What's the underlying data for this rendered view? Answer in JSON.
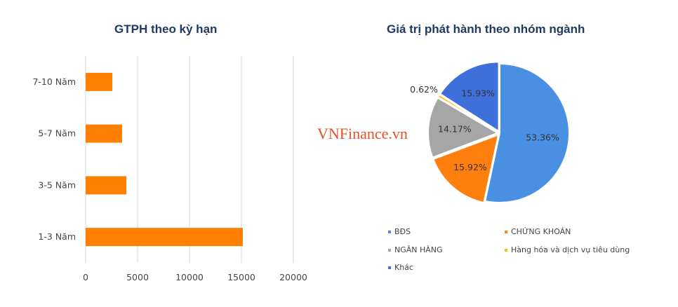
{
  "watermark": "VNFinance.vn",
  "chart_data": [
    {
      "type": "bar",
      "orientation": "horizontal",
      "title": "GTPH theo kỳ hạn",
      "categories": [
        "7-10 Năm",
        "5-7 Năm",
        "3-5 Năm",
        "1-3 Năm"
      ],
      "values": [
        2570,
        3510,
        3920,
        15130
      ],
      "xlim": [
        0,
        20000
      ],
      "xticks": [
        0,
        5000,
        10000,
        15000,
        20000
      ],
      "grid": true,
      "color": "#ff7f00"
    },
    {
      "type": "pie",
      "title": "Giá trị phát hành theo nhóm ngành",
      "slices": [
        {
          "name": "BĐS",
          "value": 53.36,
          "label": "53.36%",
          "color": "#4a90e2"
        },
        {
          "name": "CHỨNG KHOÁN",
          "value": 15.92,
          "label": "15.92%",
          "color": "#ff7f0e"
        },
        {
          "name": "NGÂN HÀNG",
          "value": 14.17,
          "label": "14.17%",
          "color": "#a6a6a6"
        },
        {
          "name": "Hàng hóa và dịch vụ tiêu dùng",
          "value": 0.62,
          "label": "0.62%",
          "color": "#ffc000"
        },
        {
          "name": "Khác",
          "value": 15.93,
          "label": "15.93%",
          "color": "#3f6fd8"
        }
      ],
      "legend": "bottom"
    }
  ]
}
